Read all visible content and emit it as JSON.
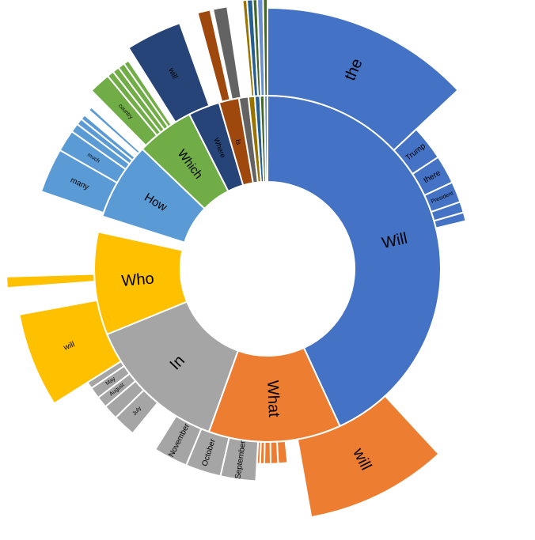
{
  "chart_data": {
    "type": "sunburst",
    "title": "",
    "inner": [
      {
        "label": "Will",
        "value": 44.0,
        "color": "#4472C4"
      },
      {
        "label": "What",
        "value": 12.6,
        "color": "#ED7D31"
      },
      {
        "label": "In",
        "value": 13.6,
        "color": "#A5A5A5"
      },
      {
        "label": "Who",
        "value": 9.8,
        "color": "#FFC000"
      },
      {
        "label": "",
        "value": 1.5,
        "color": "#FFFFFF"
      },
      {
        "label": "How",
        "value": 7.4,
        "color": "#5B9BD5"
      },
      {
        "label": "Which",
        "value": 5.5,
        "color": "#70AD47"
      },
      {
        "label": "Where",
        "value": 3.0,
        "color": "#264478"
      },
      {
        "label": "Is",
        "value": 1.9,
        "color": "#9E480E"
      },
      {
        "label": "",
        "value": 0.9,
        "color": "#636363"
      },
      {
        "label": "",
        "value": 0.6,
        "color": "#997300"
      },
      {
        "label": "",
        "value": 0.5,
        "color": "#255E91"
      },
      {
        "label": "",
        "value": 0.4,
        "color": "#43682B"
      },
      {
        "label": "",
        "value": 0.3,
        "color": "#698ED0"
      }
    ],
    "outer": [
      {
        "label": "the",
        "value": 15.0,
        "depth": 1.0,
        "color": "#4472C4"
      },
      {
        "label": "Trump",
        "value": 3.2,
        "depth": 0.35,
        "color": "#4472C4"
      },
      {
        "label": "there",
        "value": 2.6,
        "depth": 0.35,
        "color": "#4472C4"
      },
      {
        "label": "President",
        "value": 1.9,
        "depth": 0.35,
        "color": "#4472C4"
      },
      {
        "label": "",
        "value": 1.0,
        "depth": 0.35,
        "color": "#4472C4"
      },
      {
        "label": "",
        "value": 0.8,
        "depth": 0.35,
        "color": "#4472C4"
      },
      {
        "label": "",
        "value": 19.5,
        "depth": 0,
        "color": "#FFFFFF"
      },
      {
        "label": "will",
        "value": 10.5,
        "depth": 0.9,
        "color": "#ED7D31"
      },
      {
        "label": "",
        "value": 1.3,
        "depth": 0,
        "color": "#FFFFFF"
      },
      {
        "label": "",
        "value": 0.9,
        "depth": 0.25,
        "color": "#ED7D31"
      },
      {
        "label": "",
        "value": 0.7,
        "depth": 0.25,
        "color": "#ED7D31"
      },
      {
        "label": "",
        "value": 0.6,
        "depth": 0.25,
        "color": "#ED7D31"
      },
      {
        "label": "",
        "value": 0.4,
        "depth": 0.25,
        "color": "#ED7D31"
      },
      {
        "label": "",
        "value": 0.3,
        "depth": 0.25,
        "color": "#ED7D31"
      },
      {
        "label": "September",
        "value": 3.1,
        "depth": 0.45,
        "color": "#A5A5A5"
      },
      {
        "label": "October",
        "value": 3.1,
        "depth": 0.45,
        "color": "#A5A5A5"
      },
      {
        "label": "November",
        "value": 3.0,
        "depth": 0.45,
        "color": "#A5A5A5"
      },
      {
        "label": "",
        "value": 2.4,
        "depth": 0,
        "color": "#FFFFFF"
      },
      {
        "label": "July",
        "value": 2.0,
        "depth": 0.45,
        "color": "#A5A5A5"
      },
      {
        "label": "",
        "value": 1.3,
        "depth": 0.45,
        "color": "#A5A5A5"
      },
      {
        "label": "August",
        "value": 1.0,
        "depth": 0.45,
        "color": "#A5A5A5"
      },
      {
        "label": "May",
        "value": 1.0,
        "depth": 0.45,
        "color": "#A5A5A5"
      },
      {
        "label": "",
        "value": 0.6,
        "depth": 0.45,
        "color": "#A5A5A5"
      },
      {
        "label": "will",
        "value": 7.0,
        "depth": 0.9,
        "color": "#FFC000"
      },
      {
        "label": "",
        "value": 2.0,
        "depth": 0,
        "color": "#FFFFFF"
      },
      {
        "label": "",
        "value": 0.8,
        "depth": 1.0,
        "color": "#FFC000"
      },
      {
        "label": "",
        "value": 6.6,
        "depth": 0,
        "color": "#FFFFFF"
      },
      {
        "label": "many",
        "value": 3.5,
        "depth": 0.75,
        "color": "#5B9BD5"
      },
      {
        "label": "much",
        "value": 1.7,
        "depth": 0.75,
        "color": "#5B9BD5"
      },
      {
        "label": "",
        "value": 0.7,
        "depth": 0.75,
        "color": "#5B9BD5"
      },
      {
        "label": "",
        "value": 0.5,
        "depth": 0.75,
        "color": "#5B9BD5"
      },
      {
        "label": "",
        "value": 0.4,
        "depth": 0.75,
        "color": "#5B9BD5"
      },
      {
        "label": "",
        "value": 0.5,
        "depth": 0,
        "color": "#FFFFFF"
      },
      {
        "label": "",
        "value": 0.3,
        "depth": 0.75,
        "color": "#5B9BD5"
      },
      {
        "label": "",
        "value": 0.9,
        "depth": 0,
        "color": "#FFFFFF"
      },
      {
        "label": "country",
        "value": 1.6,
        "depth": 0.88,
        "color": "#70AD47"
      },
      {
        "label": "",
        "value": 0.5,
        "depth": 0.88,
        "color": "#70AD47"
      },
      {
        "label": "",
        "value": 0.5,
        "depth": 0.88,
        "color": "#70AD47"
      },
      {
        "label": "",
        "value": 0.5,
        "depth": 0.88,
        "color": "#70AD47"
      },
      {
        "label": "",
        "value": 0.4,
        "depth": 0.88,
        "color": "#70AD47"
      },
      {
        "label": "",
        "value": 0.5,
        "depth": 0,
        "color": "#FFFFFF"
      },
      {
        "label": "will",
        "value": 4.0,
        "depth": 1.0,
        "color": "#264478"
      },
      {
        "label": "",
        "value": 1.4,
        "depth": 0,
        "color": "#FFFFFF"
      },
      {
        "label": "",
        "value": 0.9,
        "depth": 1.05,
        "color": "#9E480E"
      },
      {
        "label": "",
        "value": 0.2,
        "depth": 0,
        "color": "#FFFFFF"
      },
      {
        "label": "",
        "value": 1.0,
        "depth": 1.05,
        "color": "#636363"
      },
      {
        "label": "",
        "value": 1.1,
        "depth": 0,
        "color": "#FFFFFF"
      },
      {
        "label": "",
        "value": 0.3,
        "depth": 1.1,
        "color": "#997300"
      },
      {
        "label": "",
        "value": 0.4,
        "depth": 1.1,
        "color": "#255E91"
      },
      {
        "label": "",
        "value": 0.3,
        "depth": 1.1,
        "color": "#43682B"
      },
      {
        "label": "",
        "value": 0.4,
        "depth": 1.1,
        "color": "#698ED0"
      },
      {
        "label": "",
        "value": 0.3,
        "depth": 1.1,
        "color": "#43682B"
      }
    ]
  }
}
